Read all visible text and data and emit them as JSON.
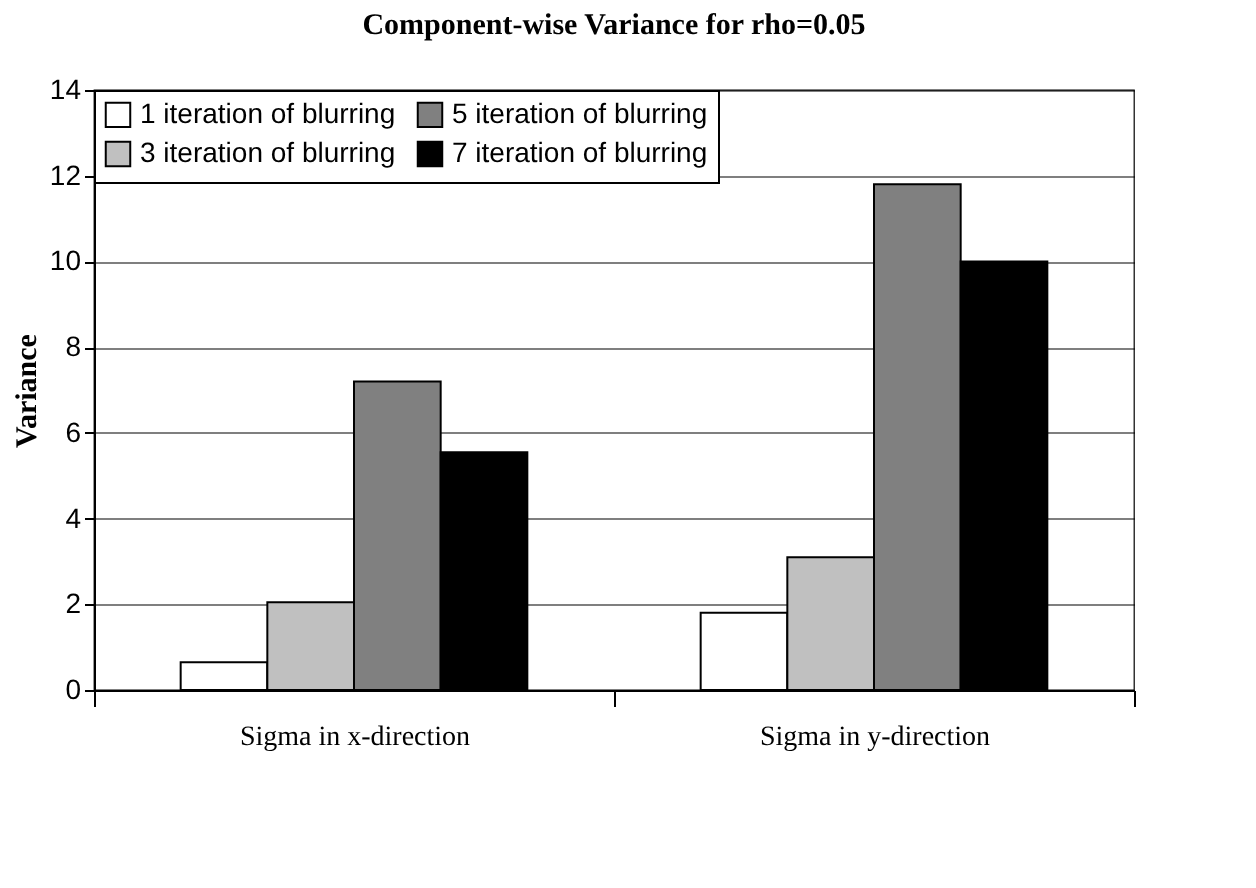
{
  "chart_data": {
    "type": "bar",
    "title": "Component-wise Variance for rho=0.05",
    "ylabel": "Variance",
    "categories": [
      "Sigma in x-direction",
      "Sigma in y-direction"
    ],
    "series": [
      {
        "name": "1 iteration of blurring",
        "color": "#ffffff",
        "values": [
          0.65,
          1.8
        ]
      },
      {
        "name": "3 iteration of blurring",
        "color": "#c0c0c0",
        "values": [
          2.05,
          3.1
        ]
      },
      {
        "name": "5 iteration of blurring",
        "color": "#808080",
        "values": [
          7.2,
          11.8
        ]
      },
      {
        "name": "7 iteration of blurring",
        "color": "#000000",
        "values": [
          5.55,
          10.0
        ]
      }
    ],
    "ylim": [
      0,
      14
    ],
    "yticks": [
      0,
      2,
      4,
      6,
      8,
      10,
      12,
      14
    ],
    "grid": "y",
    "legend": "top left"
  }
}
